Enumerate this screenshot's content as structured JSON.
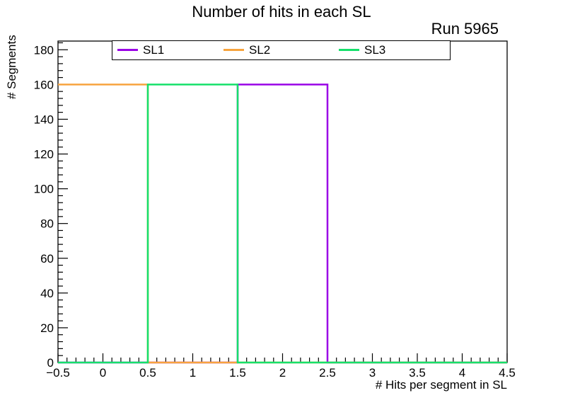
{
  "chart_data": {
    "type": "line",
    "style": "step-histogram-outline",
    "title": "Number of hits in each SL",
    "annotation_top_right": "Run 5965",
    "xlabel": "# Hits per segment in SL",
    "ylabel": "# Segments",
    "xlim": [
      -0.5,
      4.5
    ],
    "ylim": [
      0,
      185
    ],
    "grid": false,
    "legend_position": "top-inside",
    "frame_color": "#000000",
    "text_color": "#000000",
    "x_major_ticks": [
      -0.5,
      0,
      0.5,
      1,
      1.5,
      2,
      2.5,
      3,
      3.5,
      4,
      4.5
    ],
    "x_tick_labels": [
      "−0.5",
      "0",
      "0.5",
      "1",
      "1.5",
      "2",
      "2.5",
      "3",
      "3.5",
      "4",
      "4.5"
    ],
    "x_minor_step": 0.1,
    "y_major_ticks": [
      0,
      20,
      40,
      60,
      80,
      100,
      120,
      140,
      160,
      180
    ],
    "y_tick_labels": [
      "0",
      "20",
      "40",
      "60",
      "80",
      "100",
      "120",
      "140",
      "160",
      "180"
    ],
    "y_minor_step": 4,
    "bin_edges": [
      -0.5,
      0.5,
      1.5,
      2.5,
      3.5,
      4.5
    ],
    "series": [
      {
        "name": "SL1",
        "color": "#9a00e6",
        "values": [
          0,
          0,
          160,
          0,
          0
        ]
      },
      {
        "name": "SL2",
        "color": "#f7a43e",
        "values": [
          160,
          0,
          0,
          0,
          0
        ]
      },
      {
        "name": "SL3",
        "color": "#16e06b",
        "values": [
          0,
          160,
          0,
          0,
          0
        ]
      }
    ]
  }
}
